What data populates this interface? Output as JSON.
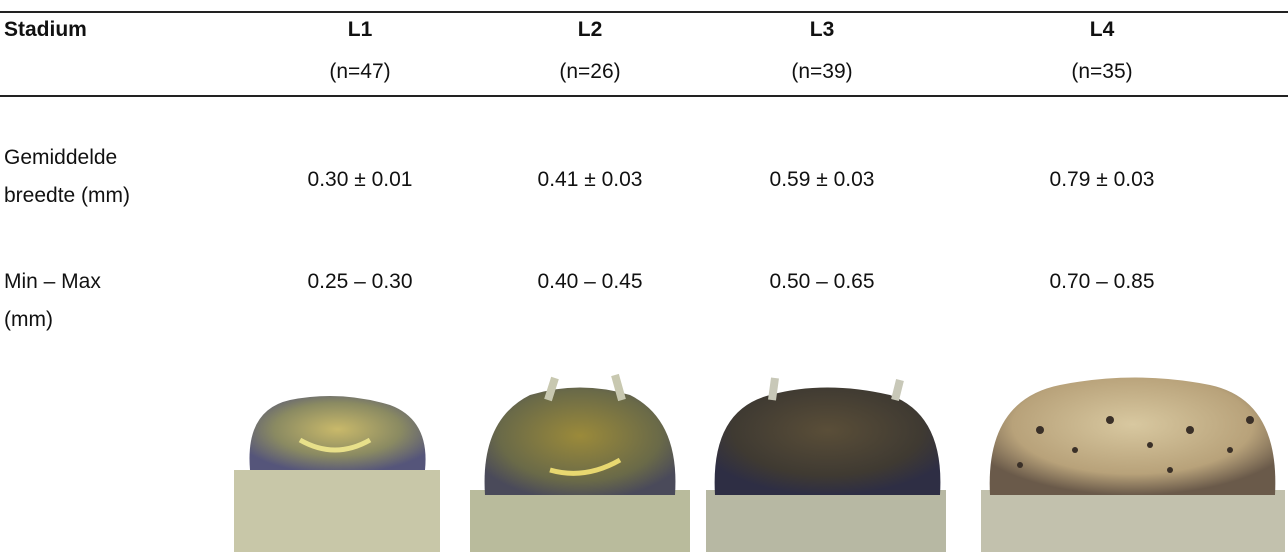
{
  "table": {
    "header": {
      "label": "Stadium",
      "columns": [
        {
          "label": "L1",
          "n": "(n=47)"
        },
        {
          "label": "L2",
          "n": "(n=26)"
        },
        {
          "label": "L3",
          "n": "(n=39)"
        },
        {
          "label": "L4",
          "n": "(n=35)"
        }
      ]
    },
    "rows": [
      {
        "label": [
          "Gemiddelde",
          "breedte (mm)"
        ],
        "cells": [
          "0.30 ± 0.01",
          "0.41 ± 0.03",
          "0.59 ± 0.03",
          "0.79 ± 0.03"
        ]
      },
      {
        "label": [
          "Min – Max",
          "(mm)"
        ],
        "cells": [
          "0.25 – 0.30",
          "0.40 – 0.45",
          "0.50 – 0.65",
          "0.70 – 0.85"
        ]
      }
    ]
  }
}
